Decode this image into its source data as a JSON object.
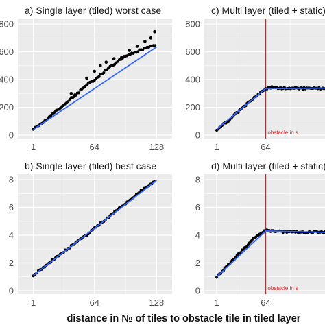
{
  "figure": {
    "xlabel": "distance in № of tiles to obstacle tile in tiled layer"
  },
  "colors": {
    "panel_bg": "#ebebeb",
    "grid": "#ffffff",
    "points": "#000000",
    "fit": "#3366ff",
    "obstacle_line": "#e41a1c"
  },
  "chart_data": [
    {
      "type": "scatter",
      "title": "a) Single layer (tiled) worst case",
      "x_ticks": [
        "1",
        "64",
        "128"
      ],
      "y_ticks": [
        "0",
        "200",
        "400",
        "600",
        "800"
      ],
      "xlim": [
        -15,
        144
      ],
      "ylim": [
        -25,
        840
      ],
      "grid": true,
      "series": [
        {
          "kind": "points",
          "x": [
            1,
            8,
            16,
            24,
            32,
            40,
            48,
            56,
            64,
            72,
            80,
            88,
            96,
            104,
            112,
            120,
            128
          ],
          "y": [
            45,
            75,
            120,
            170,
            215,
            265,
            310,
            360,
            400,
            445,
            490,
            530,
            570,
            590,
            615,
            635,
            650
          ],
          "outliers": {
            "x": [
              40,
              44,
              56,
              64,
              70,
              76,
              84,
              92,
              100,
              108,
              116,
              122,
              126
            ],
            "y": [
              300,
              290,
              410,
              460,
              500,
              525,
              550,
              560,
              610,
              640,
              675,
              700,
              745
            ]
          }
        },
        {
          "kind": "fit",
          "x": [
            1,
            128
          ],
          "y": [
            40,
            635
          ]
        }
      ]
    },
    {
      "type": "scatter",
      "title": "c) Multi layer (tiled + static)",
      "x_ticks": [
        "1",
        "64"
      ],
      "y_ticks": [
        "0",
        "200",
        "400",
        "600",
        "800"
      ],
      "xlim": [
        -15,
        144
      ],
      "ylim": [
        -25,
        840
      ],
      "grid": true,
      "vline": {
        "x": 64,
        "label": "obstacle in s"
      },
      "series": [
        {
          "kind": "points",
          "x": [
            1,
            8,
            16,
            24,
            32,
            40,
            48,
            56,
            64,
            72,
            80,
            96,
            112,
            128,
            144
          ],
          "y": [
            40,
            70,
            105,
            145,
            185,
            225,
            260,
            300,
            335,
            345,
            338,
            340,
            335,
            338,
            335
          ]
        },
        {
          "kind": "fit",
          "x": [
            1,
            64,
            144
          ],
          "y": [
            42,
            335,
            338
          ]
        }
      ]
    },
    {
      "type": "scatter",
      "title": "b) Single layer (tiled) best case",
      "x_ticks": [
        "1",
        "64",
        "128"
      ],
      "y_ticks": [
        "0",
        "2",
        "4",
        "6",
        "8"
      ],
      "xlim": [
        -15,
        144
      ],
      "ylim": [
        -0.25,
        8.4
      ],
      "grid": true,
      "series": [
        {
          "kind": "points",
          "x": [
            1,
            8,
            16,
            24,
            32,
            40,
            48,
            56,
            64,
            72,
            80,
            88,
            96,
            104,
            112,
            120,
            128
          ],
          "y": [
            1.1,
            1.5,
            1.95,
            2.35,
            2.8,
            3.2,
            3.65,
            4.05,
            4.5,
            4.95,
            5.4,
            5.85,
            6.3,
            6.75,
            7.2,
            7.6,
            7.95
          ]
        },
        {
          "kind": "fit",
          "x": [
            1,
            128
          ],
          "y": [
            1.1,
            7.95
          ]
        }
      ]
    },
    {
      "type": "scatter",
      "title": "d) Multi layer (tiled + static)",
      "x_ticks": [
        "1",
        "64"
      ],
      "y_ticks": [
        "0",
        "2",
        "4",
        "6",
        "8"
      ],
      "xlim": [
        -15,
        144
      ],
      "ylim": [
        -0.25,
        8.4
      ],
      "grid": true,
      "vline": {
        "x": 64,
        "label": "obstacle in s"
      },
      "series": [
        {
          "kind": "points",
          "x": [
            1,
            8,
            16,
            24,
            32,
            40,
            48,
            56,
            64,
            72,
            80,
            96,
            112,
            128,
            144
          ],
          "y": [
            1.0,
            1.4,
            1.85,
            2.3,
            2.8,
            3.25,
            3.7,
            4.05,
            4.35,
            4.3,
            4.25,
            4.25,
            4.2,
            4.25,
            4.2
          ]
        },
        {
          "kind": "fit",
          "x": [
            1,
            64,
            144
          ],
          "y": [
            1.0,
            4.3,
            4.2
          ]
        }
      ]
    }
  ]
}
